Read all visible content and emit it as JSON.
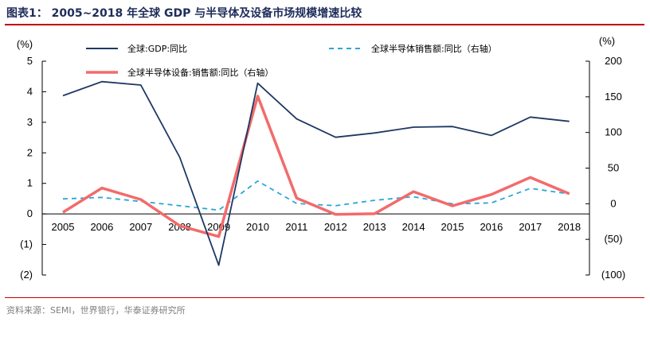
{
  "title": "图表1：   2005~2018 年全球 GDP 与半导体及设备市场规模增速比较",
  "source": "资料来源：SEMI，世界银行，华泰证券研究所",
  "colors": {
    "title": "#1f2d5a",
    "rule": "#c00000",
    "gdp": "#1f3864",
    "semi": "#2aa7d8",
    "equip": "#f26b6b"
  },
  "chart_data": {
    "type": "line",
    "x": [
      "2005",
      "2006",
      "2007",
      "2008",
      "2009",
      "2010",
      "2011",
      "2012",
      "2013",
      "2014",
      "2015",
      "2016",
      "2017",
      "2018"
    ],
    "y_left": {
      "unit": "(%)",
      "ylim": [
        -2,
        5
      ],
      "ticks": [
        "(2)",
        "(1)",
        "0",
        "1",
        "2",
        "3",
        "4",
        "5"
      ]
    },
    "y_right": {
      "unit": "(%)",
      "ylim": [
        -100,
        200
      ],
      "ticks": [
        "(100)",
        "(50)",
        "0",
        "50",
        "100",
        "150",
        "200"
      ]
    },
    "series": [
      {
        "name": "全球:GDP:同比",
        "axis": "left",
        "style": "solid",
        "values": [
          3.87,
          4.33,
          4.22,
          1.85,
          -1.68,
          4.28,
          3.11,
          2.51,
          2.65,
          2.84,
          2.86,
          2.57,
          3.17,
          3.03
        ]
      },
      {
        "name": "全球半导体销售额:同比（右轴）",
        "axis": "right",
        "style": "dashed",
        "values": [
          6.8,
          8.9,
          3.2,
          -2.8,
          -9.0,
          31.8,
          0.4,
          -2.7,
          4.8,
          9.9,
          -0.2,
          1.1,
          21.6,
          13.7
        ]
      },
      {
        "name": "全球半导体设备:销售额:同比（右轴）",
        "axis": "right",
        "style": "solid-thick",
        "values": [
          -12,
          22,
          6,
          -31,
          -46,
          151,
          8,
          -15,
          -14,
          17,
          -3,
          13,
          37,
          14
        ]
      }
    ]
  }
}
